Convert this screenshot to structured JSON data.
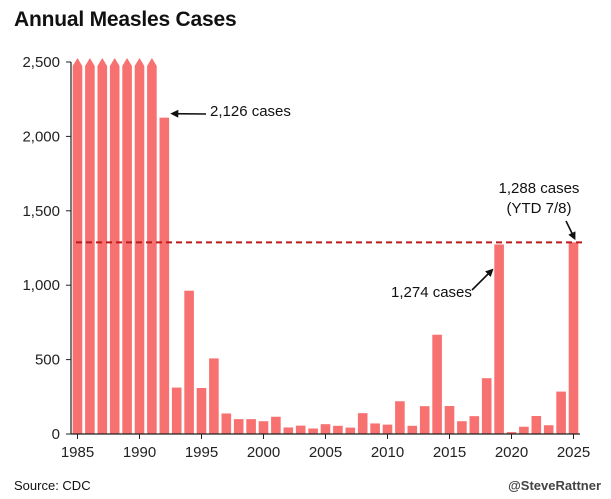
{
  "chart_data": {
    "type": "bar",
    "title": "Annual Measles Cases",
    "x": [
      1985,
      1986,
      1987,
      1988,
      1989,
      1990,
      1991,
      1992,
      1993,
      1994,
      1995,
      1996,
      1997,
      1998,
      1999,
      2000,
      2001,
      2002,
      2003,
      2004,
      2005,
      2006,
      2007,
      2008,
      2009,
      2010,
      2011,
      2012,
      2013,
      2014,
      2015,
      2016,
      2017,
      2018,
      2019,
      2020,
      2021,
      2022,
      2023,
      2024,
      2025
    ],
    "values": [
      2500,
      2500,
      2500,
      2500,
      2500,
      2500,
      2500,
      2126,
      312,
      963,
      309,
      508,
      138,
      100,
      100,
      86,
      116,
      44,
      56,
      37,
      66,
      55,
      43,
      140,
      71,
      63,
      220,
      55,
      187,
      667,
      188,
      86,
      120,
      375,
      1274,
      13,
      49,
      121,
      59,
      285,
      1288
    ],
    "capped": [
      true,
      true,
      true,
      true,
      true,
      true,
      true,
      false,
      false,
      false,
      false,
      false,
      false,
      false,
      false,
      false,
      false,
      false,
      false,
      false,
      false,
      false,
      false,
      false,
      false,
      false,
      false,
      false,
      false,
      false,
      false,
      false,
      false,
      false,
      false,
      false,
      false,
      false,
      false,
      false,
      false
    ],
    "ylim": [
      0,
      2500
    ],
    "yticks": [
      "0",
      "500",
      "1,000",
      "1,500",
      "2,000",
      "2,500"
    ],
    "ytick_values": [
      0,
      500,
      1000,
      1500,
      2000,
      2500
    ],
    "xticks": [
      "1985",
      "1990",
      "1995",
      "2000",
      "2005",
      "2010",
      "2015",
      "2020",
      "2025"
    ],
    "xtick_values": [
      1985,
      1990,
      1995,
      2000,
      2005,
      2010,
      2015,
      2020,
      2025
    ],
    "reference_line": 1288,
    "bar_color": "#f87171",
    "line_color": "#b91c1c",
    "grid": false,
    "annotations": [
      {
        "text": "2,126 cases",
        "year": 1992
      },
      {
        "text": "1,274 cases",
        "year": 2019
      },
      {
        "text": "1,288 cases",
        "text2": "(YTD 7/8)",
        "year": 2025
      }
    ]
  },
  "footer": {
    "source": "Source: CDC",
    "credit": "@SteveRattner"
  }
}
